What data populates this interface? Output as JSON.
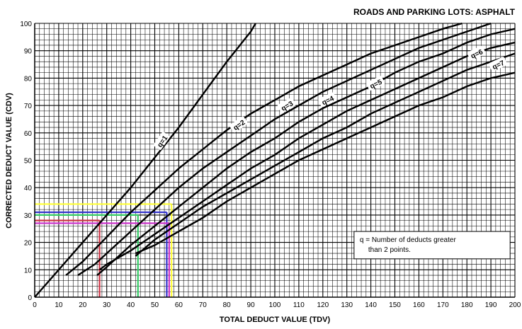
{
  "chart_data": {
    "type": "line",
    "title": "ROADS AND PARKING LOTS:  ASPHALT",
    "xlabel": "TOTAL DEDUCT VALUE (TDV)",
    "ylabel": "CORRECTED DEDUCT VALUE (CDV)",
    "xlim": [
      0,
      200
    ],
    "ylim": [
      0,
      100
    ],
    "x_ticks": [
      0,
      10,
      20,
      30,
      40,
      50,
      60,
      70,
      80,
      90,
      100,
      110,
      120,
      130,
      140,
      150,
      160,
      170,
      180,
      190,
      200
    ],
    "y_ticks": [
      0,
      10,
      20,
      30,
      40,
      50,
      60,
      70,
      80,
      90,
      100
    ],
    "grid": true,
    "series": [
      {
        "name": "q=1",
        "points": [
          [
            0,
            0
          ],
          [
            10,
            10
          ],
          [
            20,
            20
          ],
          [
            30,
            30
          ],
          [
            40,
            40
          ],
          [
            50,
            51
          ],
          [
            60,
            62
          ],
          [
            70,
            74
          ],
          [
            80,
            86
          ],
          [
            90,
            97
          ],
          [
            92,
            100
          ]
        ]
      },
      {
        "name": "q=2",
        "points": [
          [
            13,
            8
          ],
          [
            20,
            13
          ],
          [
            30,
            22
          ],
          [
            40,
            31
          ],
          [
            50,
            39
          ],
          [
            60,
            47
          ],
          [
            70,
            54
          ],
          [
            80,
            61
          ],
          [
            90,
            67
          ],
          [
            100,
            72
          ],
          [
            110,
            77
          ],
          [
            120,
            81
          ],
          [
            130,
            85
          ],
          [
            140,
            89
          ],
          [
            150,
            92
          ],
          [
            160,
            95
          ],
          [
            170,
            98
          ],
          [
            178,
            100
          ]
        ]
      },
      {
        "name": "q=3",
        "points": [
          [
            18,
            8
          ],
          [
            25,
            12
          ],
          [
            30,
            16
          ],
          [
            40,
            24
          ],
          [
            50,
            32
          ],
          [
            60,
            40
          ],
          [
            70,
            47
          ],
          [
            80,
            53
          ],
          [
            90,
            59
          ],
          [
            100,
            65
          ],
          [
            110,
            70
          ],
          [
            120,
            75
          ],
          [
            130,
            79
          ],
          [
            140,
            83
          ],
          [
            150,
            87
          ],
          [
            160,
            91
          ],
          [
            170,
            94
          ],
          [
            180,
            97
          ],
          [
            190,
            100
          ]
        ]
      },
      {
        "name": "q=4",
        "points": [
          [
            26,
            8
          ],
          [
            30,
            11
          ],
          [
            40,
            19
          ],
          [
            50,
            26
          ],
          [
            60,
            33
          ],
          [
            70,
            40
          ],
          [
            80,
            47
          ],
          [
            90,
            53
          ],
          [
            100,
            58
          ],
          [
            110,
            64
          ],
          [
            120,
            69
          ],
          [
            130,
            73
          ],
          [
            140,
            77
          ],
          [
            150,
            82
          ],
          [
            160,
            86
          ],
          [
            170,
            89
          ],
          [
            180,
            93
          ],
          [
            190,
            96
          ],
          [
            200,
            98
          ]
        ]
      },
      {
        "name": "q=5",
        "points": [
          [
            27,
            10
          ],
          [
            30,
            12
          ],
          [
            40,
            17
          ],
          [
            50,
            23
          ],
          [
            60,
            29
          ],
          [
            70,
            35
          ],
          [
            80,
            41
          ],
          [
            90,
            47
          ],
          [
            100,
            52
          ],
          [
            110,
            58
          ],
          [
            120,
            63
          ],
          [
            130,
            68
          ],
          [
            140,
            72
          ],
          [
            150,
            76
          ],
          [
            160,
            80
          ],
          [
            170,
            84
          ],
          [
            180,
            88
          ],
          [
            190,
            91
          ],
          [
            200,
            93
          ]
        ]
      },
      {
        "name": "q=6",
        "points": [
          [
            42,
            15
          ],
          [
            50,
            21
          ],
          [
            60,
            27
          ],
          [
            70,
            33
          ],
          [
            80,
            38
          ],
          [
            90,
            43
          ],
          [
            100,
            48
          ],
          [
            110,
            53
          ],
          [
            120,
            58
          ],
          [
            130,
            62
          ],
          [
            140,
            67
          ],
          [
            150,
            71
          ],
          [
            160,
            75
          ],
          [
            170,
            79
          ],
          [
            180,
            83
          ],
          [
            190,
            86
          ],
          [
            200,
            89
          ]
        ]
      },
      {
        "name": "q=7",
        "points": [
          [
            42,
            16
          ],
          [
            50,
            19
          ],
          [
            60,
            24
          ],
          [
            70,
            29
          ],
          [
            80,
            35
          ],
          [
            90,
            40
          ],
          [
            100,
            45
          ],
          [
            110,
            50
          ],
          [
            120,
            54
          ],
          [
            130,
            58
          ],
          [
            140,
            62
          ],
          [
            150,
            66
          ],
          [
            160,
            70
          ],
          [
            170,
            73
          ],
          [
            180,
            77
          ],
          [
            190,
            80
          ],
          [
            200,
            82
          ]
        ]
      }
    ],
    "highlight_lines": [
      {
        "color": "#ffff33",
        "x": 57,
        "y": 34
      },
      {
        "color": "#3333cc",
        "x": 55,
        "y": 31
      },
      {
        "color": "#33cc66",
        "x": 43,
        "y": 30
      },
      {
        "color": "#cc3344",
        "x": 27,
        "y": 28
      },
      {
        "color": "#cc33cc",
        "x": 56,
        "y": 27
      }
    ],
    "annotations": [
      {
        "text": "q = Number of deducts greater",
        "x": 135,
        "y": 21
      },
      {
        "text": "than 2 points.",
        "x": 135,
        "y": 17
      }
    ],
    "label_positions": [
      {
        "series": "q=1",
        "x": 53,
        "y": 57,
        "rotate": -55
      },
      {
        "series": "q=2",
        "x": 85,
        "y": 63,
        "rotate": -35
      },
      {
        "series": "q=3",
        "x": 105,
        "y": 70,
        "rotate": -30
      },
      {
        "series": "q=4",
        "x": 122,
        "y": 72,
        "rotate": -25
      },
      {
        "series": "q=5",
        "x": 142,
        "y": 78,
        "rotate": -25
      },
      {
        "series": "q=6",
        "x": 184,
        "y": 89,
        "rotate": -25
      },
      {
        "series": "q=7",
        "x": 193,
        "y": 85,
        "rotate": -25
      }
    ]
  }
}
